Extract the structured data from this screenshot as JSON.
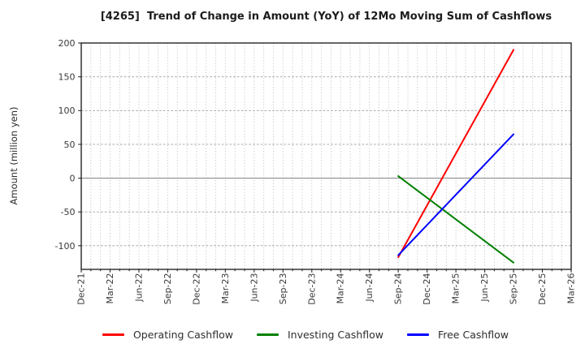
{
  "chart_data": {
    "type": "line",
    "title": "[4265]  Trend of Change in Amount (YoY) of 12Mo Moving Sum of Cashflows",
    "ylabel": "Amount (million yen)",
    "x_ticklabels": [
      "Dec-21",
      "Mar-22",
      "Jun-22",
      "Sep-22",
      "Dec-22",
      "Mar-23",
      "Jun-23",
      "Sep-23",
      "Dec-23",
      "Mar-24",
      "Jun-24",
      "Sep-24",
      "Dec-24",
      "Mar-25",
      "Jun-25",
      "Sep-25",
      "Dec-25",
      "Mar-26"
    ],
    "minor_x_divisions_per_interval": 3,
    "ylim": [
      -135,
      200
    ],
    "yticks": [
      200,
      150,
      100,
      50,
      0,
      -50,
      -100
    ],
    "grid": true,
    "legend_position": "bottom",
    "series": [
      {
        "name": "Operating Cashflow",
        "color": "#ff0000",
        "points": [
          {
            "x": "Sep-24",
            "y": -117
          },
          {
            "x": "Sep-25",
            "y": 190
          }
        ]
      },
      {
        "name": "Investing Cashflow",
        "color": "#008000",
        "points": [
          {
            "x": "Sep-24",
            "y": 3
          },
          {
            "x": "Sep-25",
            "y": -125
          }
        ]
      },
      {
        "name": "Free Cashflow",
        "color": "#0000ff",
        "points": [
          {
            "x": "Sep-24",
            "y": -114
          },
          {
            "x": "Sep-25",
            "y": 65
          }
        ]
      }
    ],
    "axis_colors": {
      "frame": "#262626",
      "zero_line": "#8c8c8c",
      "major_grid": "#9c9c9c",
      "minor_grid": "#b5b5b5",
      "tick_label": "#3a3a3a"
    }
  }
}
